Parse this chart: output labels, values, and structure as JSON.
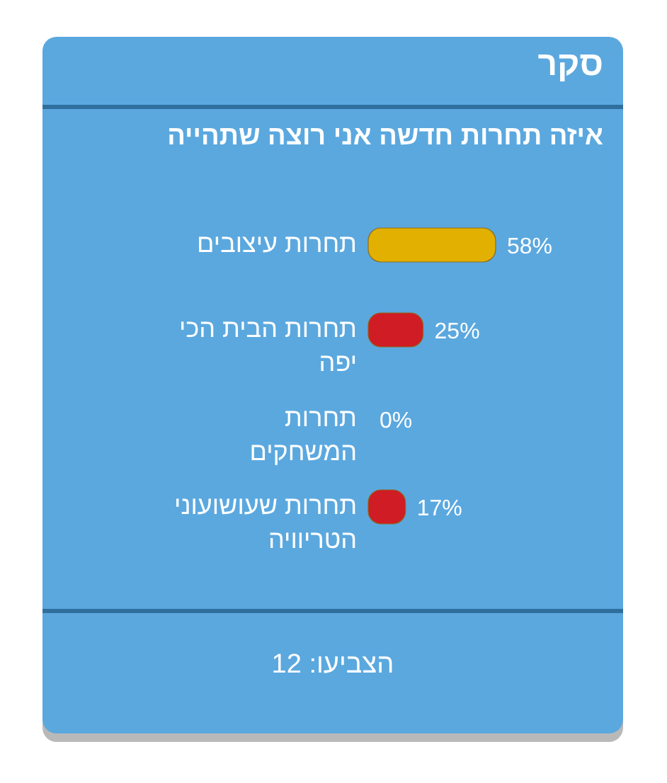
{
  "chart_data": {
    "type": "bar",
    "orientation": "horizontal",
    "title": "סקר",
    "subtitle": "איזה תחרות חדשה אני רוצה שתהייה",
    "categories": [
      "תחרות עיצובים",
      "תחרות הבית הכי יפה",
      "תחרות המשחקים",
      "תחרות שעושועוני הטריוויה"
    ],
    "values": [
      58,
      25,
      0,
      17
    ],
    "colors": [
      "#e2b000",
      "#d01c24",
      "#d01c24",
      "#d01c24"
    ],
    "value_labels": [
      "58%",
      "25%",
      "0%",
      "17%"
    ],
    "annotations": [
      "הצביעו: 12"
    ]
  }
}
